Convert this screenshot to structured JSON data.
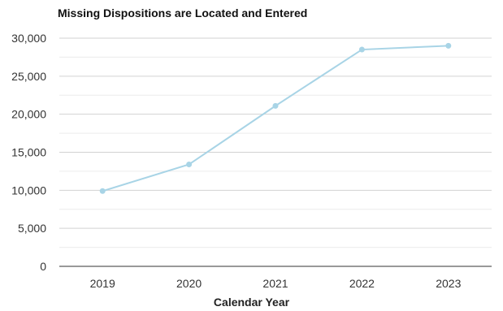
{
  "chart_data": {
    "type": "line",
    "title": "Missing Dispositions are Located and Entered",
    "xlabel": "Calendar Year",
    "ylabel": "",
    "categories": [
      "2019",
      "2020",
      "2021",
      "2022",
      "2023"
    ],
    "series": [
      {
        "values": [
          9900,
          13400,
          21100,
          28500,
          29000
        ],
        "color": "#a8d4e6"
      }
    ],
    "ylim": [
      0,
      30000
    ],
    "yticks": [
      0,
      5000,
      10000,
      15000,
      20000,
      25000,
      30000
    ],
    "ytick_labels": [
      "0",
      "5,000",
      "10,000",
      "15,000",
      "20,000",
      "25,000",
      "30,000"
    ],
    "grid": true,
    "legend": "none"
  }
}
